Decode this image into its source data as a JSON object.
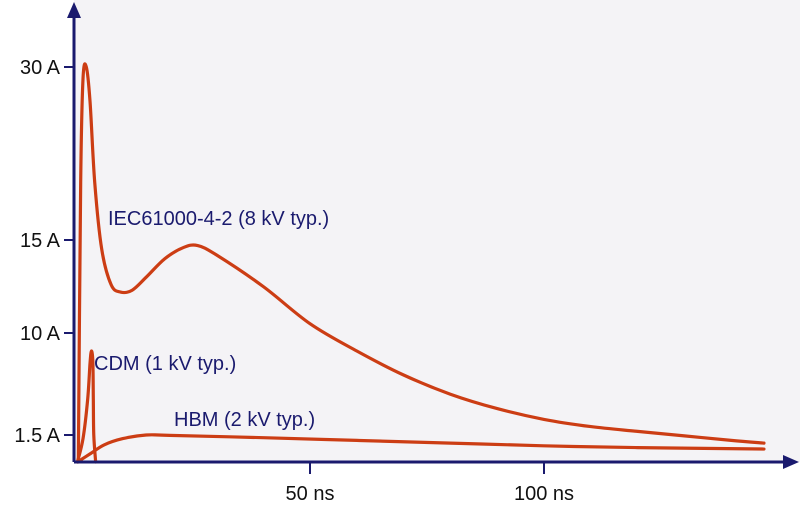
{
  "chart_data": {
    "type": "line",
    "colors": {
      "background": "#f4f3f6",
      "axis": "#1a1a6e",
      "curve": "#cc3d14",
      "label_text": "#1a1a6e",
      "tick_text": "#111111"
    },
    "grid": false,
    "legend": "none",
    "y_axis": {
      "scale": "non-linear",
      "ticks": [
        {
          "value": 1.5,
          "label": "1.5 A"
        },
        {
          "value": 10,
          "label": "10 A"
        },
        {
          "value": 15,
          "label": "15 A"
        },
        {
          "value": 30,
          "label": "30 A"
        }
      ]
    },
    "x_axis": {
      "range_ns": [
        0,
        148
      ],
      "ticks": [
        {
          "value": 50,
          "label": "50 ns"
        },
        {
          "value": 100,
          "label": "100 ns"
        }
      ]
    },
    "series": [
      {
        "name": "IEC61000-4-2 (8 kV typ.)",
        "points": [
          [
            0.5,
            0
          ],
          [
            1.0,
            20
          ],
          [
            1.5,
            29
          ],
          [
            2.2,
            30
          ],
          [
            3.0,
            27
          ],
          [
            4.0,
            20
          ],
          [
            5.5,
            14.5
          ],
          [
            7.5,
            12.6
          ],
          [
            9.5,
            12.2
          ],
          [
            12.0,
            12.3
          ],
          [
            15.0,
            13.0
          ],
          [
            19.0,
            14.0
          ],
          [
            23.0,
            14.6
          ],
          [
            26.0,
            14.7
          ],
          [
            30.0,
            14.2
          ],
          [
            40.0,
            12.5
          ],
          [
            50.0,
            10.5
          ],
          [
            60.0,
            8.5
          ],
          [
            70.0,
            6.5
          ],
          [
            80.0,
            4.9
          ],
          [
            90.0,
            3.7
          ],
          [
            100.0,
            2.8
          ],
          [
            110.0,
            2.2
          ],
          [
            120.0,
            1.8
          ],
          [
            130.0,
            1.45
          ],
          [
            140.0,
            1.2
          ],
          [
            147.0,
            1.05
          ]
        ]
      },
      {
        "name": "CDM (1 kV typ.)",
        "points": [
          [
            0.3,
            0
          ],
          [
            1.5,
            1.3
          ],
          [
            2.5,
            4.5
          ],
          [
            3.0,
            7.5
          ],
          [
            3.3,
            8.5
          ],
          [
            3.6,
            7.6
          ],
          [
            3.7,
            4.5
          ],
          [
            3.8,
            1.5
          ],
          [
            4.2,
            0
          ]
        ]
      },
      {
        "name": "HBM (2 kV typ.)",
        "points": [
          [
            0.3,
            0
          ],
          [
            3.0,
            0.45
          ],
          [
            6.0,
            0.95
          ],
          [
            10.0,
            1.3
          ],
          [
            15.0,
            1.5
          ],
          [
            20.0,
            1.48
          ],
          [
            40.0,
            1.35
          ],
          [
            60.0,
            1.2
          ],
          [
            80.0,
            1.05
          ],
          [
            100.0,
            0.9
          ],
          [
            120.0,
            0.8
          ],
          [
            147.0,
            0.72
          ]
        ]
      }
    ]
  }
}
